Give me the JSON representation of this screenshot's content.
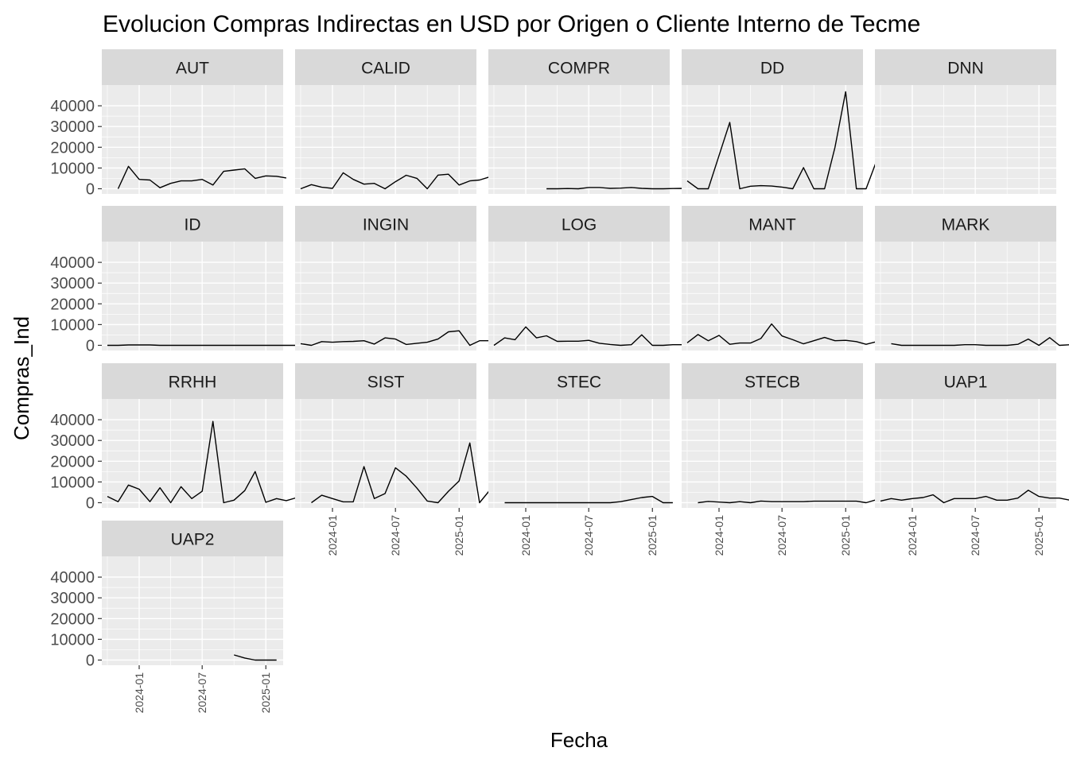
{
  "chart_data": {
    "type": "line",
    "title": "Evolucion Compras Indirectas en USD por Origen o Cliente Interno de Tecme",
    "xlabel": "Fecha",
    "ylabel": "Compras_Ind",
    "ylim": [
      -2500,
      50000
    ],
    "yticks": [
      0,
      10000,
      20000,
      30000,
      40000
    ],
    "ytick_labels": [
      "0",
      "10000",
      "20000",
      "30000",
      "40000"
    ],
    "xlim": [
      "2023-09-15",
      "2025-02-20"
    ],
    "xticks": [
      "2024-01-01",
      "2024-07-01",
      "2025-01-01"
    ],
    "xtick_labels": [
      "2024-01",
      "2024-07",
      "2025-01"
    ],
    "facet_layout": {
      "ncol": 5,
      "nrow": 4,
      "scales": "fixed"
    },
    "facets": [
      {
        "name": "AUT",
        "start": "2023-11",
        "values": [
          0,
          10800,
          4500,
          4200,
          500,
          2600,
          3800,
          3800,
          4500,
          1800,
          8400,
          9000,
          9600,
          5000,
          6200,
          6000,
          5200
        ]
      },
      {
        "name": "CALID",
        "start": "2023-10",
        "values": [
          0,
          2000,
          700,
          200,
          7700,
          4500,
          2200,
          2600,
          0,
          3400,
          6500,
          5000,
          0,
          6600,
          7000,
          1800,
          3800,
          4200,
          5800
        ]
      },
      {
        "name": "COMPR",
        "start": "2024-03",
        "values": [
          0,
          0,
          100,
          0,
          600,
          600,
          200,
          300,
          600,
          200,
          0,
          0,
          100,
          200,
          0
        ]
      },
      {
        "name": "DD",
        "start": "2023-10",
        "values": [
          3800,
          0,
          0,
          16000,
          32000,
          0,
          1200,
          1500,
          1300,
          800,
          0,
          10200,
          0,
          0,
          20000,
          46800,
          0,
          0,
          13800,
          0
        ]
      },
      {
        "name": "DNN",
        "start": "2023-10",
        "values": []
      },
      {
        "name": "ID",
        "start": "2023-10",
        "values": [
          0,
          0,
          200,
          200,
          200,
          0,
          0,
          0,
          0,
          0,
          0,
          0,
          0,
          0,
          0,
          0,
          0,
          0,
          0
        ]
      },
      {
        "name": "INGIN",
        "start": "2023-10",
        "values": [
          800,
          0,
          1800,
          1500,
          1800,
          1900,
          2200,
          600,
          3600,
          3000,
          400,
          1000,
          1500,
          3000,
          6500,
          7000,
          0,
          2200,
          2200
        ]
      },
      {
        "name": "LOG",
        "start": "2023-10",
        "values": [
          0,
          3600,
          2700,
          8900,
          3600,
          4600,
          1900,
          2000,
          2000,
          2400,
          1000,
          400,
          0,
          300,
          5100,
          0,
          0,
          300,
          300
        ]
      },
      {
        "name": "MANT",
        "start": "2023-10",
        "values": [
          1200,
          5200,
          2200,
          4800,
          500,
          1100,
          1100,
          3300,
          10300,
          4500,
          2700,
          700,
          2200,
          3800,
          2200,
          2400,
          1800,
          500,
          1800
        ]
      },
      {
        "name": "MARK",
        "start": "2023-11",
        "values": [
          800,
          0,
          0,
          0,
          0,
          0,
          0,
          300,
          300,
          0,
          0,
          0,
          500,
          3000,
          0,
          3700,
          0,
          300
        ]
      },
      {
        "name": "RRHH",
        "start": "2023-10",
        "values": [
          3000,
          500,
          8500,
          6500,
          500,
          7200,
          0,
          7700,
          2000,
          5500,
          39200,
          0,
          1200,
          5800,
          15000,
          200,
          2000,
          1000,
          2500
        ]
      },
      {
        "name": "SIST",
        "start": "2023-11",
        "values": [
          0,
          3600,
          2000,
          400,
          400,
          17400,
          2000,
          4400,
          16800,
          12800,
          7000,
          800,
          0,
          5500,
          10500,
          28800,
          0,
          6300
        ]
      },
      {
        "name": "STEC",
        "start": "2023-11",
        "values": [
          0,
          0,
          0,
          0,
          0,
          0,
          0,
          0,
          0,
          0,
          0,
          500,
          1500,
          2500,
          3000,
          0,
          0
        ]
      },
      {
        "name": "STECB",
        "start": "2023-11",
        "values": [
          0,
          600,
          300,
          0,
          500,
          0,
          800,
          500,
          500,
          500,
          500,
          700,
          700,
          700,
          700,
          700,
          0,
          1500
        ]
      },
      {
        "name": "UAP1",
        "start": "2023-10",
        "values": [
          800,
          2000,
          1200,
          2000,
          2500,
          3800,
          0,
          2000,
          2000,
          2000,
          3000,
          1200,
          1200,
          2200,
          6000,
          3000,
          2200,
          2200,
          1200
        ]
      },
      {
        "name": "UAP2",
        "start": "2024-10",
        "values": [
          2500,
          1000,
          0,
          0,
          0
        ]
      }
    ]
  }
}
